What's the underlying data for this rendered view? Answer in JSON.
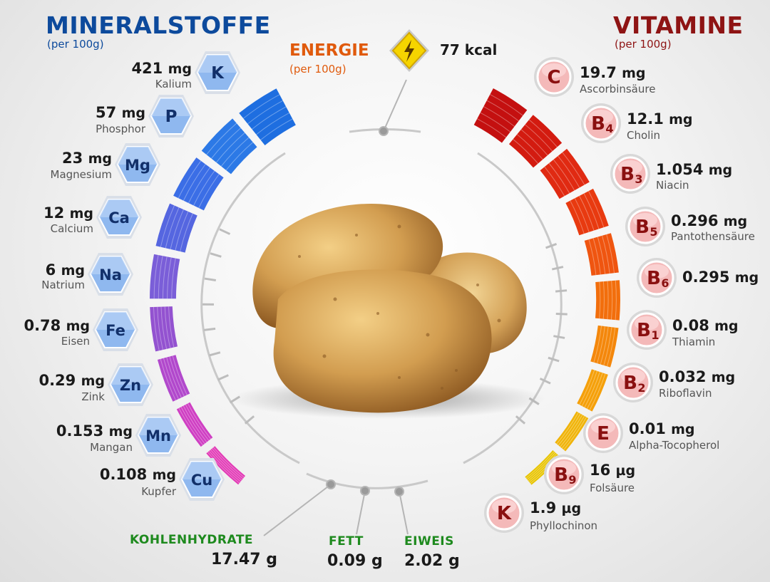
{
  "minerals": {
    "title": "MINERALSTOFFE",
    "per": "(per 100g)",
    "items": [
      {
        "symbol": "K",
        "amount": "421",
        "unit": "mg",
        "name": "Kalium"
      },
      {
        "symbol": "P",
        "amount": "57",
        "unit": "mg",
        "name": "Phosphor"
      },
      {
        "symbol": "Mg",
        "amount": "23",
        "unit": "mg",
        "name": "Magnesium"
      },
      {
        "symbol": "Ca",
        "amount": "12",
        "unit": "mg",
        "name": "Calcium"
      },
      {
        "symbol": "Na",
        "amount": "6",
        "unit": "mg",
        "name": "Natrium"
      },
      {
        "symbol": "Fe",
        "amount": "0.78",
        "unit": "mg",
        "name": "Eisen"
      },
      {
        "symbol": "Zn",
        "amount": "0.29",
        "unit": "mg",
        "name": "Zink"
      },
      {
        "symbol": "Mn",
        "amount": "0.153",
        "unit": "mg",
        "name": "Mangan"
      },
      {
        "symbol": "Cu",
        "amount": "0.108",
        "unit": "mg",
        "name": "Kupfer"
      }
    ]
  },
  "vitamins": {
    "title": "VITAMINE",
    "per": "(per 100g)",
    "items": [
      {
        "letter": "C",
        "sub": "",
        "amount": "19.7",
        "unit": "mg",
        "name": "Ascorbinsäure"
      },
      {
        "letter": "B",
        "sub": "4",
        "amount": "12.1",
        "unit": "mg",
        "name": "Cholin"
      },
      {
        "letter": "B",
        "sub": "3",
        "amount": "1.054",
        "unit": "mg",
        "name": "Niacin"
      },
      {
        "letter": "B",
        "sub": "5",
        "amount": "0.296",
        "unit": "mg",
        "name": "Pantothensäure"
      },
      {
        "letter": "B",
        "sub": "6",
        "amount": "0.295",
        "unit": "mg",
        "name": ""
      },
      {
        "letter": "B",
        "sub": "1",
        "amount": "0.08",
        "unit": "mg",
        "name": "Thiamin"
      },
      {
        "letter": "B",
        "sub": "2",
        "amount": "0.032",
        "unit": "mg",
        "name": "Riboflavin"
      },
      {
        "letter": "E",
        "sub": "",
        "amount": "0.01",
        "unit": "mg",
        "name": "Alpha-Tocopherol"
      },
      {
        "letter": "B",
        "sub": "9",
        "amount": "16",
        "unit": "µg",
        "name": "Folsäure"
      },
      {
        "letter": "K",
        "sub": "",
        "amount": "1.9",
        "unit": "µg",
        "name": "Phyllochinon"
      }
    ]
  },
  "energy": {
    "label": "ENERGIE",
    "per": "(per 100g)",
    "value": "77 kcal"
  },
  "macros": {
    "carbs": {
      "label": "KOHLENHYDRATE",
      "value": "17.47 g"
    },
    "fat": {
      "label": "FETT",
      "value": "0.09 g"
    },
    "protein": {
      "label": "EIWEIS",
      "value": "2.02 g"
    }
  },
  "colors": {
    "mineral_title": "#0d4a9c",
    "vitamin_title": "#8e1414",
    "energy_title": "#e05a0c",
    "macro_label": "#1e8a1e"
  },
  "icons": {
    "energy": "lightning-bolt-icon",
    "center": "potato-illustration"
  }
}
